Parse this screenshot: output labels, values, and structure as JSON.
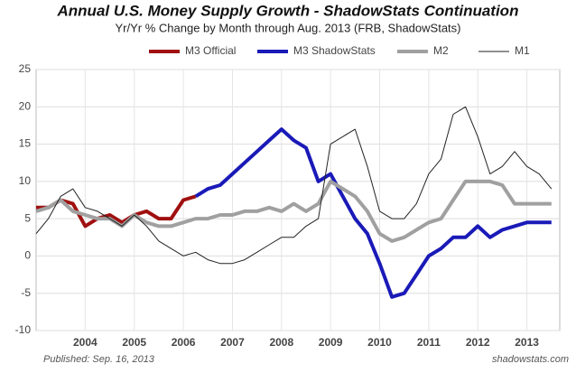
{
  "chart_data": {
    "type": "line",
    "title": "Annual U.S. Money Supply Growth - ShadowStats Continuation",
    "subtitle": "Yr/Yr % Change by Month through Aug. 2013  (FRB, ShadowStats)",
    "published": "Published: Sep. 16, 2013",
    "source": "shadowstats.com",
    "x": [
      2003.0,
      2003.25,
      2003.5,
      2003.75,
      2004.0,
      2004.25,
      2004.5,
      2004.75,
      2005.0,
      2005.25,
      2005.5,
      2005.75,
      2006.0,
      2006.25,
      2006.5,
      2006.75,
      2007.0,
      2007.25,
      2007.5,
      2007.75,
      2008.0,
      2008.25,
      2008.5,
      2008.75,
      2009.0,
      2009.25,
      2009.5,
      2009.75,
      2010.0,
      2010.25,
      2010.5,
      2010.75,
      2011.0,
      2011.25,
      2011.5,
      2011.75,
      2012.0,
      2012.25,
      2012.5,
      2012.75,
      2013.0,
      2013.25,
      2013.5
    ],
    "series": [
      {
        "name": "M3 Official",
        "color": "#a01010",
        "values": [
          6.5,
          6.5,
          7.5,
          7,
          4,
          5,
          5.5,
          4.5,
          5.5,
          6,
          5,
          5,
          7.5,
          8,
          null,
          null,
          null,
          null,
          null,
          null,
          null,
          null,
          null,
          null,
          null,
          null,
          null,
          null,
          null,
          null,
          null,
          null,
          null,
          null,
          null,
          null,
          null,
          null,
          null,
          null,
          null,
          null,
          null
        ]
      },
      {
        "name": "M3 ShadowStats",
        "color": "#1a1ab8",
        "values": [
          null,
          null,
          null,
          null,
          null,
          null,
          null,
          null,
          null,
          null,
          null,
          null,
          null,
          8,
          9,
          9.5,
          11,
          12.5,
          14,
          15.5,
          17,
          15.5,
          14.5,
          10,
          11,
          8,
          5,
          3,
          -1,
          -5.5,
          -5,
          -2.5,
          0,
          1,
          2.5,
          2.5,
          4,
          2.5,
          3.5,
          4,
          4.5,
          4.5,
          4.5
        ]
      },
      {
        "name": "M2",
        "color": "#a0a0a0",
        "values": [
          6,
          6.5,
          7.5,
          6,
          5.5,
          5,
          5,
          4,
          5.5,
          4.5,
          4,
          4,
          4.5,
          5,
          5,
          5.5,
          5.5,
          6,
          6,
          6.5,
          6,
          7,
          6,
          7,
          10,
          9,
          8,
          6,
          3,
          2,
          2.5,
          3.5,
          4.5,
          5,
          7.5,
          10,
          10,
          10,
          9.5,
          7,
          7,
          7,
          7
        ]
      },
      {
        "name": "M1",
        "color": "#222222",
        "values": [
          3,
          5,
          8,
          9,
          6.5,
          6,
          5,
          4,
          5.5,
          4,
          2,
          1,
          0,
          0.5,
          -0.5,
          -1,
          -1,
          -0.5,
          0.5,
          1.5,
          2.5,
          2.5,
          4,
          5,
          15,
          16,
          17,
          12,
          6,
          5,
          5,
          7,
          11,
          13,
          19,
          20,
          16,
          11,
          12,
          14,
          12,
          11,
          9
        ]
      }
    ],
    "xlim": [
      2003,
      2013.67
    ],
    "xticks": [
      2004,
      2005,
      2006,
      2007,
      2008,
      2009,
      2010,
      2011,
      2012,
      2013
    ],
    "ylim": [
      -10,
      25
    ],
    "yticks": [
      -10,
      -5,
      0,
      5,
      10,
      15,
      20,
      25
    ],
    "grid": true
  }
}
